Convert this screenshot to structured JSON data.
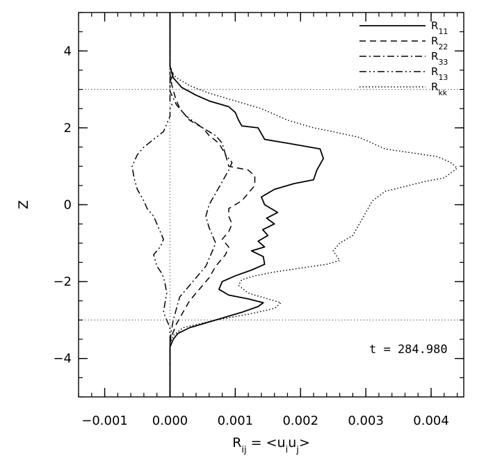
{
  "chart_data": {
    "type": "line",
    "orientation": "profile",
    "xlabel": "R_ij = <u_i u_j>",
    "xlabel_parts": {
      "main": "R",
      "sub": "ij",
      "eq": " = <u",
      "sub2": "i",
      "mid": "u",
      "sub3": "j",
      "end": ">"
    },
    "ylabel": "Z",
    "xlim": [
      -0.0014,
      0.0045
    ],
    "ylim": [
      -5,
      5
    ],
    "x_ticks": [
      -0.001,
      0.0,
      0.001,
      0.002,
      0.003,
      0.004
    ],
    "x_tick_labels": [
      "−0.001",
      "0.000",
      "0.001",
      "0.002",
      "0.003",
      "0.004"
    ],
    "y_ticks": [
      -4,
      -2,
      0,
      2,
      4
    ],
    "y_tick_labels": [
      "−4",
      "−2",
      "0",
      "2",
      "4"
    ],
    "reference_lines": {
      "horizontal": [
        3,
        -3
      ],
      "vertical": [
        0
      ]
    },
    "annotation": "t = 284.980",
    "legend_position": "top-right",
    "series": [
      {
        "name": "R11",
        "label_main": "R",
        "label_sub": "11",
        "style": "solid",
        "points": [
          [
            0.0,
            -5.0
          ],
          [
            0.0,
            -3.7
          ],
          [
            5e-05,
            -3.5
          ],
          [
            0.00012,
            -3.35
          ],
          [
            0.0003,
            -3.2
          ],
          [
            0.0007,
            -3.0
          ],
          [
            0.0011,
            -2.8
          ],
          [
            0.00135,
            -2.65
          ],
          [
            0.00143,
            -2.55
          ],
          [
            0.0012,
            -2.45
          ],
          [
            0.0009,
            -2.35
          ],
          [
            0.00075,
            -2.2
          ],
          [
            0.0008,
            -2.0
          ],
          [
            0.001,
            -1.85
          ],
          [
            0.00125,
            -1.7
          ],
          [
            0.00145,
            -1.55
          ],
          [
            0.00143,
            -1.35
          ],
          [
            0.00125,
            -1.2
          ],
          [
            0.00145,
            -1.1
          ],
          [
            0.00135,
            -0.95
          ],
          [
            0.0015,
            -0.8
          ],
          [
            0.00142,
            -0.65
          ],
          [
            0.0016,
            -0.5
          ],
          [
            0.00148,
            -0.35
          ],
          [
            0.00165,
            -0.2
          ],
          [
            0.00145,
            0.0
          ],
          [
            0.0014,
            0.2
          ],
          [
            0.0016,
            0.4
          ],
          [
            0.0019,
            0.55
          ],
          [
            0.0022,
            0.65
          ],
          [
            0.00225,
            0.9
          ],
          [
            0.00235,
            1.2
          ],
          [
            0.0023,
            1.45
          ],
          [
            0.0018,
            1.6
          ],
          [
            0.00145,
            1.7
          ],
          [
            0.0014,
            1.85
          ],
          [
            0.00135,
            2.0
          ],
          [
            0.0011,
            2.05
          ],
          [
            0.00105,
            2.2
          ],
          [
            0.001,
            2.4
          ],
          [
            0.0009,
            2.55
          ],
          [
            0.0006,
            2.7
          ],
          [
            0.0004,
            2.85
          ],
          [
            0.00018,
            3.05
          ],
          [
            5e-05,
            3.3
          ],
          [
            0.0,
            3.6
          ],
          [
            0.0,
            5.0
          ]
        ]
      },
      {
        "name": "R22",
        "label_main": "R",
        "label_sub": "22",
        "style": "dashed",
        "points": [
          [
            0.0,
            -5.0
          ],
          [
            0.0,
            -3.6
          ],
          [
            3e-05,
            -3.4
          ],
          [
            0.0001,
            -3.1
          ],
          [
            0.0002,
            -2.8
          ],
          [
            0.0003,
            -2.5
          ],
          [
            0.0004,
            -2.3
          ],
          [
            0.0005,
            -2.1
          ],
          [
            0.0006,
            -1.9
          ],
          [
            0.0007,
            -1.6
          ],
          [
            0.00085,
            -1.3
          ],
          [
            0.0009,
            -1.1
          ],
          [
            0.0008,
            -0.9
          ],
          [
            0.0009,
            -0.7
          ],
          [
            0.00095,
            -0.5
          ],
          [
            0.0009,
            -0.3
          ],
          [
            0.0009,
            -0.1
          ],
          [
            0.0011,
            0.1
          ],
          [
            0.0012,
            0.3
          ],
          [
            0.0013,
            0.5
          ],
          [
            0.0013,
            0.75
          ],
          [
            0.0012,
            0.9
          ],
          [
            0.0009,
            1.0
          ],
          [
            0.00085,
            1.3
          ],
          [
            0.00075,
            1.6
          ],
          [
            0.0006,
            1.8
          ],
          [
            0.0005,
            2.0
          ],
          [
            0.0003,
            2.2
          ],
          [
            0.00015,
            2.5
          ],
          [
            8e-05,
            2.8
          ],
          [
            3e-05,
            3.1
          ],
          [
            0.0,
            3.4
          ],
          [
            0.0,
            5.0
          ]
        ]
      },
      {
        "name": "R33",
        "label_main": "R",
        "label_sub": "33",
        "style": "dashdot",
        "points": [
          [
            0.0,
            -5.0
          ],
          [
            0.0,
            -3.6
          ],
          [
            2e-05,
            -3.3
          ],
          [
            5e-05,
            -3.0
          ],
          [
            0.0001,
            -2.7
          ],
          [
            0.00015,
            -2.4
          ],
          [
            0.00025,
            -2.2
          ],
          [
            0.00035,
            -2.0
          ],
          [
            0.00045,
            -1.8
          ],
          [
            0.00055,
            -1.6
          ],
          [
            0.0006,
            -1.4
          ],
          [
            0.00065,
            -1.2
          ],
          [
            0.0007,
            -1.0
          ],
          [
            0.0006,
            -0.6
          ],
          [
            0.00055,
            -0.3
          ],
          [
            0.0006,
            0.0
          ],
          [
            0.0007,
            0.3
          ],
          [
            0.0008,
            0.6
          ],
          [
            0.0009,
            0.9
          ],
          [
            0.00095,
            1.1
          ],
          [
            0.00085,
            1.3
          ],
          [
            0.0008,
            1.6
          ],
          [
            0.0007,
            1.8
          ],
          [
            0.0005,
            2.0
          ],
          [
            0.00025,
            2.3
          ],
          [
            0.0001,
            2.6
          ],
          [
            0.0,
            2.95
          ],
          [
            0.0,
            3.2
          ],
          [
            5e-05,
            3.4
          ],
          [
            0.0,
            3.6
          ],
          [
            0.0,
            5.0
          ]
        ]
      },
      {
        "name": "R13",
        "label_main": "R",
        "label_sub": "13",
        "style": "dashdotdot",
        "points": [
          [
            0.0,
            -5.0
          ],
          [
            0.0,
            -3.2
          ],
          [
            -5e-05,
            -3.0
          ],
          [
            -0.0001,
            -2.8
          ],
          [
            -8e-05,
            -2.6
          ],
          [
            -5e-05,
            -2.3
          ],
          [
            -8e-05,
            -2.0
          ],
          [
            -0.00012,
            -1.8
          ],
          [
            -0.0002,
            -1.6
          ],
          [
            -0.00025,
            -1.3
          ],
          [
            -0.00015,
            -1.1
          ],
          [
            -0.0001,
            -0.9
          ],
          [
            -0.00015,
            -0.7
          ],
          [
            -0.0002,
            -0.5
          ],
          [
            -0.00025,
            -0.3
          ],
          [
            -0.00035,
            -0.1
          ],
          [
            -0.0004,
            0.1
          ],
          [
            -0.0005,
            0.4
          ],
          [
            -0.00055,
            0.7
          ],
          [
            -0.00058,
            1.0
          ],
          [
            -0.0005,
            1.3
          ],
          [
            -0.0004,
            1.5
          ],
          [
            -0.00025,
            1.7
          ],
          [
            -0.0001,
            1.9
          ],
          [
            -5e-05,
            2.1
          ],
          [
            0.0,
            2.3
          ],
          [
            0.0,
            2.5
          ],
          [
            3e-05,
            2.6
          ],
          [
            0.0,
            2.7
          ],
          [
            0.0,
            5.0
          ]
        ]
      },
      {
        "name": "Rkk",
        "label_main": "R",
        "label_sub": "kk",
        "style": "dotted",
        "points": [
          [
            0.0,
            -5.0
          ],
          [
            0.0,
            -3.6
          ],
          [
            5e-05,
            -3.4
          ],
          [
            0.0002,
            -3.2
          ],
          [
            0.0007,
            -3.0
          ],
          [
            0.0012,
            -2.85
          ],
          [
            0.0016,
            -2.7
          ],
          [
            0.0017,
            -2.55
          ],
          [
            0.0015,
            -2.45
          ],
          [
            0.0012,
            -2.3
          ],
          [
            0.00105,
            -2.1
          ],
          [
            0.0011,
            -1.95
          ],
          [
            0.0013,
            -1.85
          ],
          [
            0.0016,
            -1.75
          ],
          [
            0.002,
            -1.65
          ],
          [
            0.0024,
            -1.55
          ],
          [
            0.0026,
            -1.45
          ],
          [
            0.0025,
            -1.2
          ],
          [
            0.0026,
            -1.0
          ],
          [
            0.0028,
            -0.8
          ],
          [
            0.0029,
            -0.5
          ],
          [
            0.003,
            -0.2
          ],
          [
            0.0031,
            0.1
          ],
          [
            0.0033,
            0.35
          ],
          [
            0.0039,
            0.6
          ],
          [
            0.0042,
            0.7
          ],
          [
            0.0044,
            0.95
          ],
          [
            0.0043,
            1.1
          ],
          [
            0.0041,
            1.25
          ],
          [
            0.0037,
            1.35
          ],
          [
            0.0033,
            1.45
          ],
          [
            0.0031,
            1.6
          ],
          [
            0.0029,
            1.75
          ],
          [
            0.0025,
            1.9
          ],
          [
            0.0022,
            2.0
          ],
          [
            0.002,
            2.1
          ],
          [
            0.0018,
            2.2
          ],
          [
            0.0016,
            2.35
          ],
          [
            0.0014,
            2.5
          ],
          [
            0.001,
            2.7
          ],
          [
            0.0006,
            2.9
          ],
          [
            0.0003,
            3.1
          ],
          [
            0.0001,
            3.3
          ],
          [
            0.0,
            3.5
          ],
          [
            0.0,
            5.0
          ]
        ]
      }
    ]
  }
}
